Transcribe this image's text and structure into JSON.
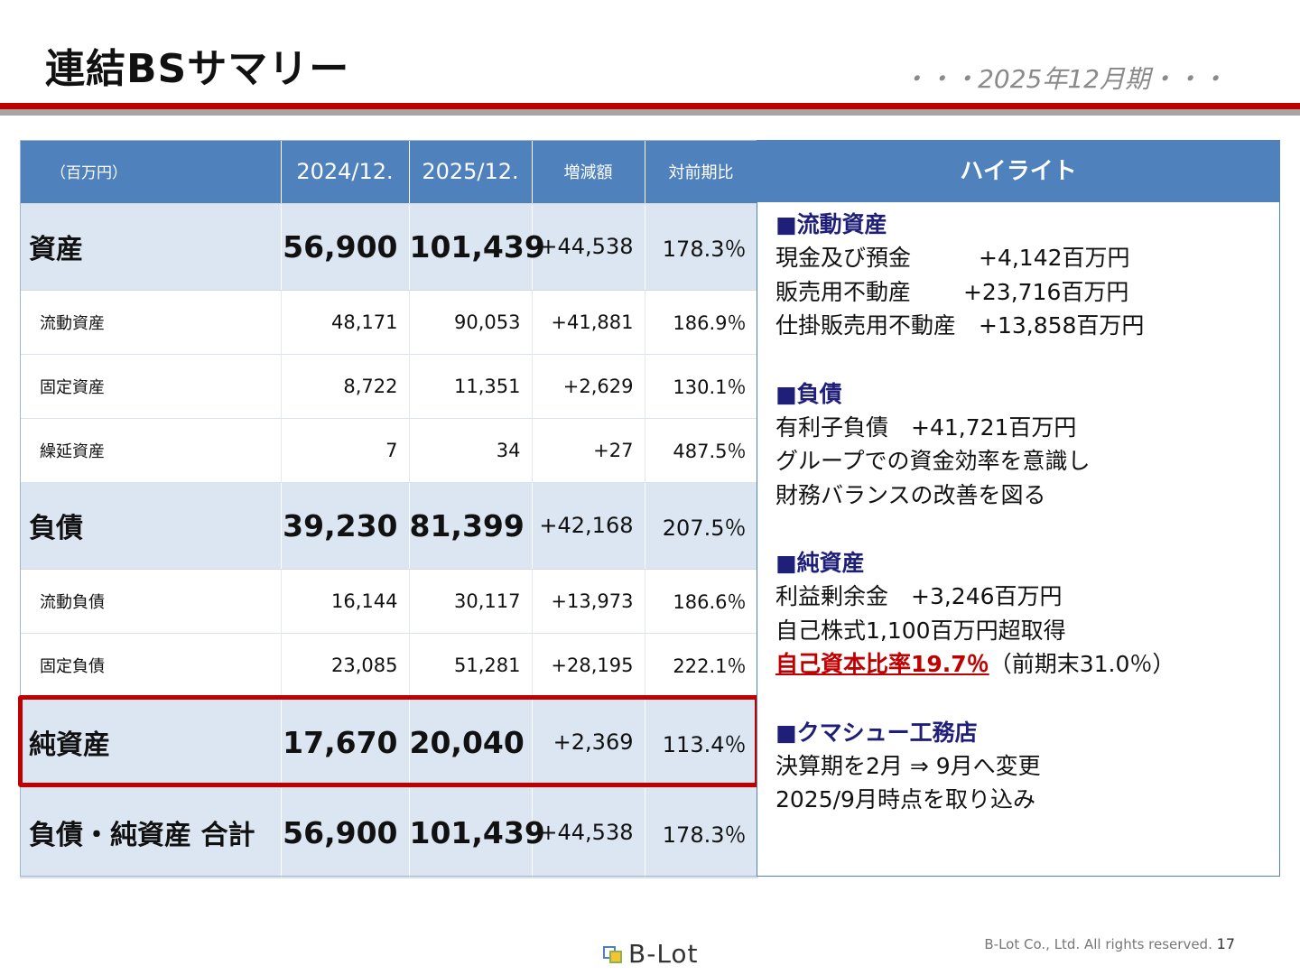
{
  "header": {
    "title": "連結BSサマリー",
    "period": "・・・2025年12月期・・・"
  },
  "table": {
    "columns": [
      "（百万円）",
      "2024/12.",
      "2025/12.",
      "増減額",
      "対前期比"
    ],
    "rows": [
      {
        "label": "資産",
        "prev": "56,900",
        "curr": "101,439",
        "diff": "+44,538",
        "ratio": "178.3％"
      },
      {
        "label": "流動資産",
        "prev": "48,171",
        "curr": "90,053",
        "diff": "+41,881",
        "ratio": "186.9％"
      },
      {
        "label": "固定資産",
        "prev": "8,722",
        "curr": "11,351",
        "diff": "+2,629",
        "ratio": "130.1％"
      },
      {
        "label": "繰延資産",
        "prev": "7",
        "curr": "34",
        "diff": "+27",
        "ratio": "487.5％"
      },
      {
        "label": "負債",
        "prev": "39,230",
        "curr": "81,399",
        "diff": "+42,168",
        "ratio": "207.5％"
      },
      {
        "label": "流動負債",
        "prev": "16,144",
        "curr": "30,117",
        "diff": "+13,973",
        "ratio": "186.6％"
      },
      {
        "label": "固定負債",
        "prev": "23,085",
        "curr": "51,281",
        "diff": "+28,195",
        "ratio": "222.1％"
      },
      {
        "label": "純資産",
        "prev": "17,670",
        "curr": "20,040",
        "diff": "+2,369",
        "ratio": "113.4％"
      },
      {
        "label": "負債・純資産 合計",
        "prev": "56,900",
        "curr": "101,439",
        "diff": "+44,538",
        "ratio": "178.3％"
      }
    ]
  },
  "highlight": {
    "title": "ハイライト",
    "sections": {
      "current_assets": {
        "heading": "■流動資産",
        "lines": [
          "現金及び預金　　　+4,142百万円",
          "販売用不動産　　 +23,716百万円",
          "仕掛販売用不動産　+13,858百万円"
        ]
      },
      "liabilities": {
        "heading": "■負債",
        "lines": [
          "有利子負債　+41,721百万円",
          "グループでの資金効率を意識し",
          "財務バランスの改善を図る"
        ]
      },
      "net_assets": {
        "heading": "■純資産",
        "lines": [
          "利益剰余金　+3,246百万円",
          "自己株式1,100百万円超取得"
        ],
        "equity_ratio": "自己資本比率19.7％",
        "equity_ratio_note": "（前期末31.0％）"
      },
      "kumashu": {
        "heading": "■クマシュー工務店",
        "lines": [
          "決算期を2月 ⇒ 9月へ変更",
          "2025/9月時点を取り込み"
        ]
      }
    }
  },
  "footer": {
    "logo": "B-Lot",
    "copyright": "B-Lot Co., Ltd. All rights reserved.",
    "page": "17"
  },
  "colors": {
    "header_blue": "#4f81bd",
    "row_light_blue": "#dce6f2",
    "accent_red": "#c00000",
    "section_navy": "#1f1f7a"
  }
}
